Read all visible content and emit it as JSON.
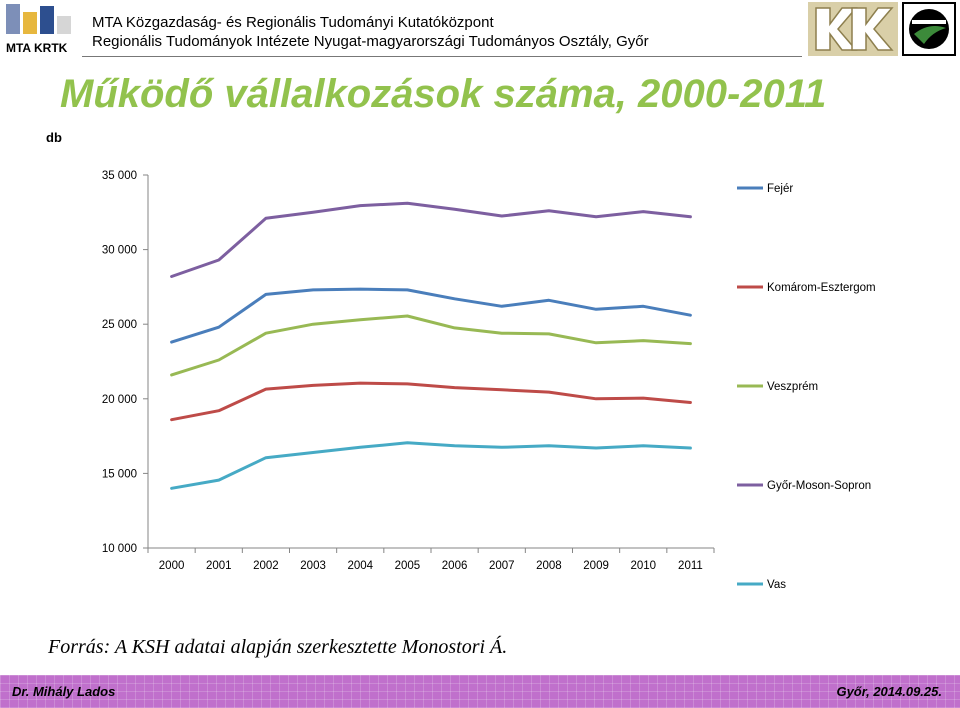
{
  "header": {
    "logo_text": "MTA KRTK",
    "org_line1": "MTA Közgazdaság- és Regionális Tudományi Kutatóközpont",
    "org_line2": "Regionális Tudományok Intézete Nyugat-magyarországi Tudományos Osztály, Győr"
  },
  "title": "Működő vállalkozások száma, 2000-2011",
  "unit": "db",
  "source": "Forrás: A KSH adatai alapján szerkesztette Monostori Á.",
  "footer": {
    "author": "Dr. Mihály Lados",
    "place_date": "Győr, 2014.09.25."
  },
  "chart_data": {
    "type": "line",
    "x": [
      "2000",
      "2001",
      "2002",
      "2003",
      "2004",
      "2005",
      "2006",
      "2007",
      "2008",
      "2009",
      "2010",
      "2011"
    ],
    "ylim": [
      10000,
      35000
    ],
    "yticks": [
      10000,
      15000,
      20000,
      25000,
      30000,
      35000
    ],
    "ytick_labels": [
      "10 000",
      "15 000",
      "20 000",
      "25 000",
      "30 000",
      "35 000"
    ],
    "grid": false,
    "legend": "right",
    "series": [
      {
        "name": "Fejér",
        "color": "#4a7ebb",
        "values": [
          23800,
          24800,
          27000,
          27300,
          27350,
          27300,
          26700,
          26200,
          26600,
          26000,
          26200,
          25600
        ]
      },
      {
        "name": "Komárom-Esztergom",
        "color": "#be4b48",
        "values": [
          18600,
          19200,
          20650,
          20900,
          21050,
          21000,
          20750,
          20600,
          20450,
          20000,
          20050,
          19750
        ]
      },
      {
        "name": "Veszprém",
        "color": "#98b954",
        "values": [
          21600,
          22600,
          24400,
          25000,
          25300,
          25550,
          24750,
          24400,
          24350,
          23750,
          23900,
          23700
        ]
      },
      {
        "name": "Győr-Moson-Sopron",
        "color": "#7d5fa0",
        "values": [
          28200,
          29300,
          32100,
          32500,
          32950,
          33100,
          32700,
          32250,
          32600,
          32200,
          32550,
          32200
        ]
      },
      {
        "name": "Vas",
        "color": "#46aac5",
        "values": [
          14000,
          14550,
          16050,
          16400,
          16750,
          17050,
          16850,
          16750,
          16850,
          16700,
          16850,
          16700
        ]
      }
    ]
  }
}
